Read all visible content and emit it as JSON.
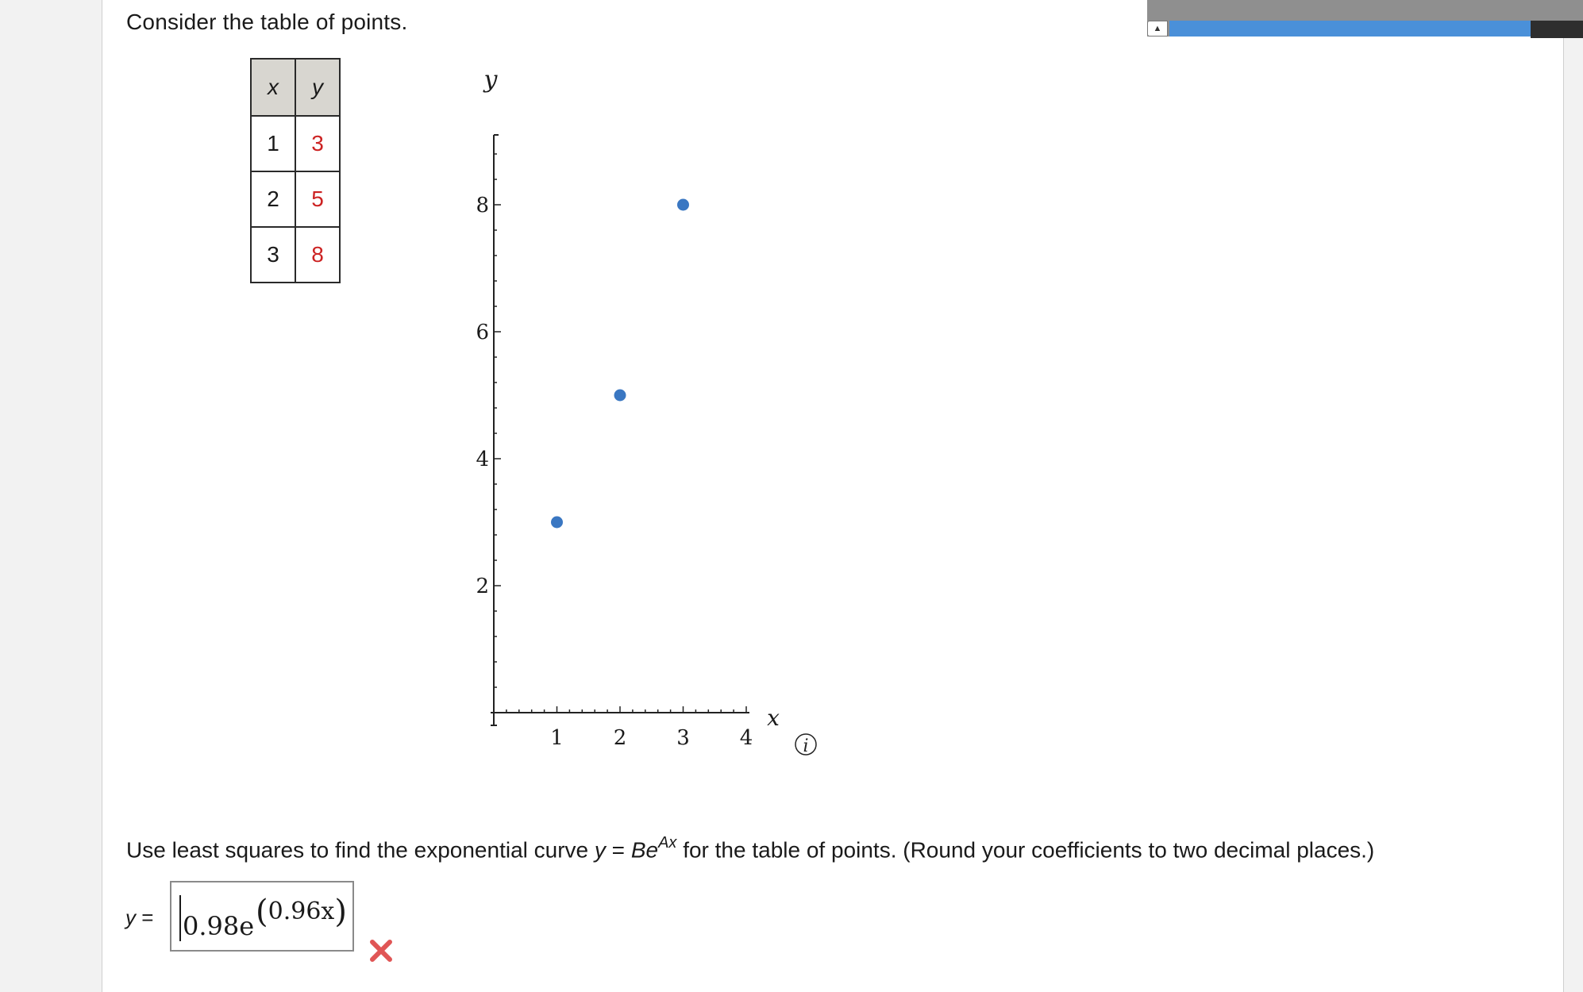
{
  "prompt": "Consider the table of points.",
  "table": {
    "headers": [
      "x",
      "y"
    ],
    "rows": [
      {
        "x": "1",
        "y": "3"
      },
      {
        "x": "2",
        "y": "5"
      },
      {
        "x": "3",
        "y": "8"
      }
    ]
  },
  "chart_data": {
    "type": "scatter",
    "x": [
      1,
      2,
      3
    ],
    "y": [
      3,
      5,
      8
    ],
    "xlabel": "x",
    "ylabel": "y",
    "xlim": [
      0,
      4
    ],
    "ylim": [
      0,
      9
    ],
    "x_ticks": [
      1,
      2,
      3,
      4
    ],
    "y_ticks": [
      2,
      4,
      6,
      8
    ],
    "point_color": "#3a77c2",
    "grid": false
  },
  "info_icon_label": "i",
  "question": {
    "before": "Use least squares to find the exponential curve ",
    "y": "y",
    "equals": " = ",
    "base": "Be",
    "exponent": "Ax",
    "after": " for the table of points. (Round your coefficients to two decimal places.)"
  },
  "answer": {
    "label_var": "y",
    "label_eq": " =",
    "coefficient": "0.98e",
    "exponent": "0.96x",
    "status": "incorrect",
    "status_color": "#e05555"
  }
}
